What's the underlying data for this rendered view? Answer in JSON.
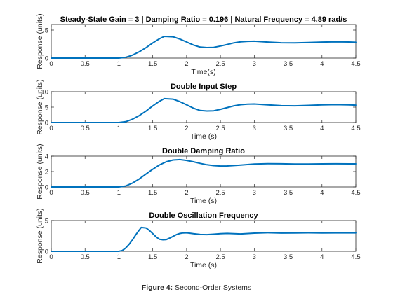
{
  "figure": {
    "caption_label": "Figure 4:",
    "caption_text": " Second-Order Systems"
  },
  "colors": {
    "line": "#0072BD",
    "axis": "#262626",
    "background": "#ffffff"
  },
  "chart_data": [
    {
      "type": "line",
      "title": "Steady-State Gain = 3 | Damping Ratio = 0.196 | Natural Frequency = 4.89 rad/s",
      "xlabel": "Time(s)",
      "ylabel": "Response (units)",
      "xlim": [
        0,
        4.5
      ],
      "ylim": [
        0,
        6
      ],
      "xticks": [
        0,
        0.5,
        1,
        1.5,
        2,
        2.5,
        3,
        3.5,
        4,
        4.5
      ],
      "xtick_labels": [
        "0",
        "0.5",
        "1",
        "1.5",
        "2",
        "2.5",
        "3",
        "3.5",
        "4",
        "4.5"
      ],
      "yticks": [
        0,
        5
      ],
      "ytick_labels": [
        "0",
        "5"
      ],
      "grid": false,
      "series": [
        {
          "x": [
            0,
            0.5,
            1,
            1.1,
            1.2,
            1.3,
            1.4,
            1.5,
            1.6,
            1.67,
            1.8,
            1.9,
            2.0,
            2.1,
            2.2,
            2.3,
            2.4,
            2.5,
            2.6,
            2.7,
            2.8,
            2.9,
            3.0,
            3.2,
            3.4,
            3.6,
            3.8,
            4.0,
            4.2,
            4.4,
            4.5
          ],
          "y": [
            0,
            0,
            0,
            0.14,
            0.53,
            1.12,
            1.85,
            2.71,
            3.45,
            3.87,
            3.8,
            3.4,
            2.87,
            2.34,
            1.96,
            1.87,
            1.91,
            2.15,
            2.43,
            2.72,
            2.9,
            2.99,
            3.01,
            2.86,
            2.74,
            2.72,
            2.78,
            2.86,
            2.91,
            2.87,
            2.83
          ]
        }
      ]
    },
    {
      "type": "line",
      "title": "Double Input Step",
      "xlabel": "Time (s)",
      "ylabel": "Response (units)",
      "xlim": [
        0,
        4.5
      ],
      "ylim": [
        0,
        10
      ],
      "xticks": [
        0,
        0.5,
        1,
        1.5,
        2,
        2.5,
        3,
        3.5,
        4,
        4.5
      ],
      "xtick_labels": [
        "0",
        "0.5",
        "1",
        "1.5",
        "2",
        "2.5",
        "3",
        "3.5",
        "4",
        "4.5"
      ],
      "yticks": [
        0,
        5,
        10
      ],
      "ytick_labels": [
        "0",
        "5",
        "10"
      ],
      "grid": false,
      "series": [
        {
          "x": [
            0,
            0.5,
            1,
            1.1,
            1.2,
            1.3,
            1.4,
            1.5,
            1.6,
            1.67,
            1.8,
            1.9,
            2.0,
            2.1,
            2.2,
            2.3,
            2.4,
            2.5,
            2.6,
            2.7,
            2.8,
            2.9,
            3.0,
            3.2,
            3.4,
            3.6,
            3.8,
            4.0,
            4.2,
            4.4,
            4.5
          ],
          "y": [
            0,
            0,
            0,
            0.28,
            1.06,
            2.24,
            3.7,
            5.42,
            6.9,
            7.74,
            7.6,
            6.8,
            5.74,
            4.68,
            3.92,
            3.74,
            3.82,
            4.3,
            4.86,
            5.44,
            5.8,
            5.98,
            6.02,
            5.72,
            5.48,
            5.44,
            5.56,
            5.72,
            5.82,
            5.74,
            5.66
          ]
        }
      ]
    },
    {
      "type": "line",
      "title": "Double Damping Ratio",
      "xlabel": "Time (s)",
      "ylabel": "Response (units)",
      "xlim": [
        0,
        4.5
      ],
      "ylim": [
        0,
        4
      ],
      "xticks": [
        0,
        0.5,
        1,
        1.5,
        2,
        2.5,
        3,
        3.5,
        4,
        4.5
      ],
      "xtick_labels": [
        "0",
        "0.5",
        "1",
        "1.5",
        "2",
        "2.5",
        "3",
        "3.5",
        "4",
        "4.5"
      ],
      "yticks": [
        0,
        2,
        4
      ],
      "ytick_labels": [
        "0",
        "2",
        "4"
      ],
      "grid": false,
      "series": [
        {
          "x": [
            0,
            0.5,
            1,
            1.1,
            1.2,
            1.3,
            1.4,
            1.5,
            1.6,
            1.7,
            1.8,
            1.9,
            2.0,
            2.1,
            2.2,
            2.3,
            2.4,
            2.5,
            2.6,
            2.8,
            3.0,
            3.2,
            3.4,
            3.6,
            3.8,
            4.0,
            4.2,
            4.4,
            4.5
          ],
          "y": [
            0,
            0,
            0,
            0.13,
            0.5,
            1.04,
            1.67,
            2.3,
            2.86,
            3.27,
            3.5,
            3.55,
            3.45,
            3.27,
            3.06,
            2.88,
            2.77,
            2.72,
            2.73,
            2.85,
            2.98,
            3.03,
            3.01,
            2.98,
            2.98,
            3.0,
            3.01,
            3.0,
            3.0
          ]
        }
      ]
    },
    {
      "type": "line",
      "title": "Double Oscillation Frequency",
      "xlabel": "Time (s)",
      "ylabel": "Response (units)",
      "xlim": [
        0,
        4.5
      ],
      "ylim": [
        0,
        5
      ],
      "xticks": [
        0,
        0.5,
        1,
        1.5,
        2,
        2.5,
        3,
        3.5,
        4,
        4.5
      ],
      "xtick_labels": [
        "0",
        "0.5",
        "1",
        "1.5",
        "2",
        "2.5",
        "3",
        "3.5",
        "4",
        "4.5"
      ],
      "yticks": [
        0,
        5
      ],
      "ytick_labels": [
        "0",
        "5"
      ],
      "grid": false,
      "series": [
        {
          "x": [
            0,
            0.5,
            1,
            1.05,
            1.1,
            1.15,
            1.2,
            1.25,
            1.3,
            1.33,
            1.4,
            1.45,
            1.5,
            1.55,
            1.6,
            1.65,
            1.7,
            1.75,
            1.8,
            1.85,
            1.9,
            1.95,
            2.0,
            2.05,
            2.1,
            2.2,
            2.3,
            2.4,
            2.5,
            2.6,
            2.7,
            2.8,
            3.0,
            3.2,
            3.4,
            3.6,
            3.8,
            4.0,
            4.2,
            4.4,
            4.5
          ],
          "y": [
            0,
            0,
            0,
            0.14,
            0.53,
            1.12,
            1.85,
            2.71,
            3.45,
            3.87,
            3.8,
            3.4,
            2.87,
            2.34,
            1.96,
            1.87,
            1.91,
            2.15,
            2.43,
            2.72,
            2.9,
            2.99,
            3.01,
            2.94,
            2.86,
            2.74,
            2.72,
            2.78,
            2.86,
            2.91,
            2.87,
            2.83,
            2.95,
            3.02,
            2.97,
            2.99,
            3.01,
            2.99,
            3.0,
            3.0,
            3.0
          ]
        }
      ]
    }
  ]
}
